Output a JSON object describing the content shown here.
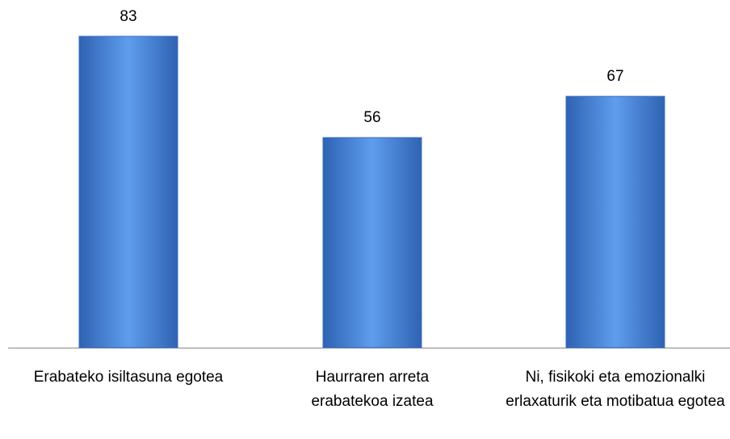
{
  "chart_data": {
    "type": "bar",
    "categories": [
      "Erabateko isiltasuna egotea",
      "Haurraren arreta erabatekoa izatea",
      "Ni, fisikoki eta emozionalki erlaxaturik eta motibatua egotea"
    ],
    "values": [
      83,
      56,
      67
    ],
    "color": "#4a86d8"
  }
}
